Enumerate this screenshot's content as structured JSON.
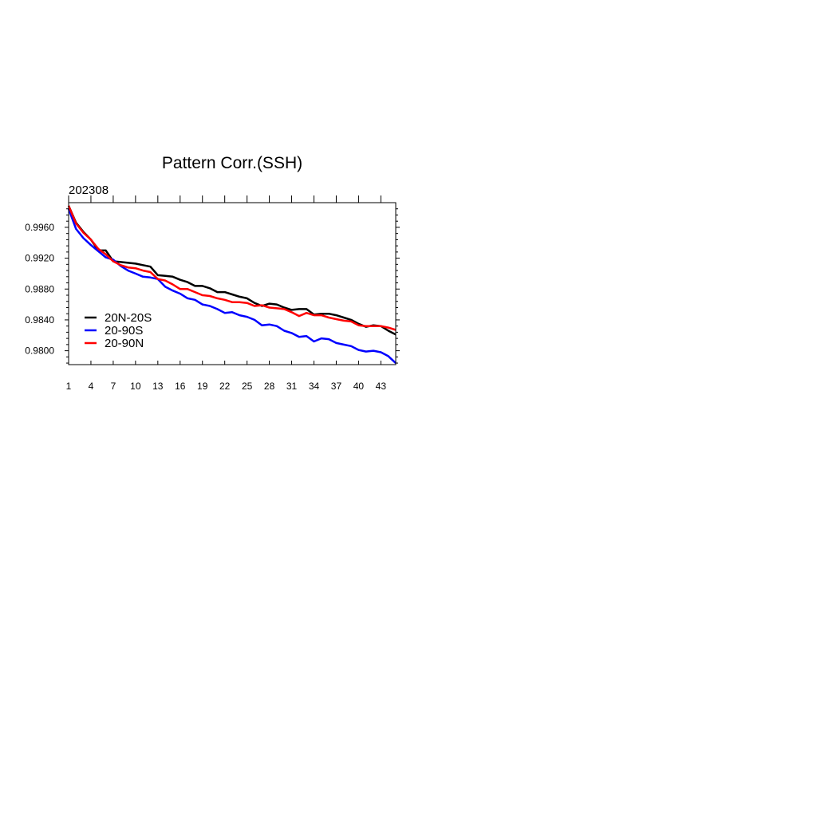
{
  "chart_data": {
    "type": "line",
    "title": "Pattern Corr.(SSH)",
    "subtitle": "202308",
    "xlabel": "",
    "ylabel": "",
    "xlim": [
      1,
      45
    ],
    "ylim": [
      0.9782,
      0.9992
    ],
    "x_ticks": [
      1,
      4,
      7,
      10,
      13,
      16,
      19,
      22,
      25,
      28,
      31,
      34,
      37,
      40,
      43
    ],
    "y_ticks": [
      "0.9800",
      "0.9840",
      "0.9880",
      "0.9920",
      "0.9960"
    ],
    "legend_position": "left",
    "x": [
      1,
      2,
      3,
      4,
      5,
      6,
      7,
      8,
      9,
      10,
      11,
      12,
      13,
      14,
      15,
      16,
      17,
      18,
      19,
      20,
      21,
      22,
      23,
      24,
      25,
      26,
      27,
      28,
      29,
      30,
      31,
      32,
      33,
      34,
      35,
      36,
      37,
      38,
      39,
      40,
      41,
      42,
      43,
      44,
      45
    ],
    "series": [
      {
        "name": "20N-20S",
        "color": "#000000",
        "values": [
          0.9988,
          0.9966,
          0.9954,
          0.9944,
          0.993,
          0.993,
          0.9916,
          0.9915,
          0.9914,
          0.9913,
          0.9911,
          0.9909,
          0.9898,
          0.9897,
          0.9896,
          0.9892,
          0.9889,
          0.9884,
          0.9884,
          0.9881,
          0.9876,
          0.9876,
          0.9873,
          0.987,
          0.9868,
          0.9862,
          0.9858,
          0.9861,
          0.986,
          0.9856,
          0.9853,
          0.9854,
          0.9854,
          0.9847,
          0.9848,
          0.9848,
          0.9846,
          0.9843,
          0.984,
          0.9835,
          0.9831,
          0.9833,
          0.9832,
          0.9826,
          0.9821
        ]
      },
      {
        "name": "20-90S",
        "color": "#0000ff",
        "values": [
          0.9984,
          0.9958,
          0.9946,
          0.9937,
          0.9929,
          0.9921,
          0.9918,
          0.991,
          0.9904,
          0.99,
          0.9896,
          0.9895,
          0.9893,
          0.9883,
          0.9878,
          0.9874,
          0.9868,
          0.9866,
          0.986,
          0.9858,
          0.9854,
          0.9849,
          0.985,
          0.9846,
          0.9844,
          0.984,
          0.9833,
          0.9834,
          0.9832,
          0.9826,
          0.9823,
          0.9818,
          0.9819,
          0.9812,
          0.9816,
          0.9815,
          0.981,
          0.9808,
          0.9806,
          0.9801,
          0.9799,
          0.98,
          0.9798,
          0.9793,
          0.9784
        ]
      },
      {
        "name": "20-90N",
        "color": "#ff0000",
        "values": [
          0.9988,
          0.9965,
          0.9953,
          0.9944,
          0.9932,
          0.9925,
          0.9916,
          0.9911,
          0.9908,
          0.9907,
          0.9904,
          0.9902,
          0.9893,
          0.9891,
          0.9886,
          0.988,
          0.988,
          0.9876,
          0.9872,
          0.9871,
          0.9868,
          0.9866,
          0.9863,
          0.9863,
          0.9862,
          0.9858,
          0.9859,
          0.9856,
          0.9855,
          0.9854,
          0.985,
          0.9845,
          0.9849,
          0.9846,
          0.9846,
          0.9843,
          0.9841,
          0.9839,
          0.9838,
          0.9833,
          0.9832,
          0.9832,
          0.9832,
          0.983,
          0.9827
        ]
      }
    ]
  }
}
